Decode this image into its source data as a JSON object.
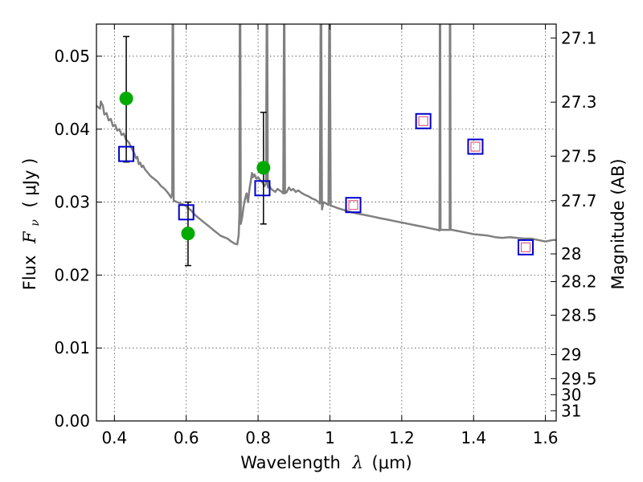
{
  "chart_data": {
    "type": "scatter",
    "xlabel_text": "Wavelength",
    "xlabel_symbol": "λ",
    "xlabel_unit": "(μm)",
    "ylabel_text": "Flux",
    "ylabel_symbol": "F",
    "ylabel_sub": "ν",
    "ylabel_unit": "( μJy )",
    "y2label": "Magnitude (AB)",
    "xlim": [
      0.35,
      1.63
    ],
    "ylim": [
      0.0,
      0.0544
    ],
    "x_ticks": [
      0.4,
      0.6,
      0.8,
      1.0,
      1.2,
      1.4,
      1.6
    ],
    "x_tick_labels": [
      "0.4",
      "0.6",
      "0.8",
      "1",
      "1.2",
      "1.4",
      "1.6"
    ],
    "y_ticks": [
      0.0,
      0.01,
      0.02,
      0.03,
      0.04,
      0.05
    ],
    "y_tick_labels": [
      "0.00",
      "0.01",
      "0.02",
      "0.03",
      "0.04",
      "0.05"
    ],
    "y2_ticks": [
      {
        "label": "27.1",
        "flux": 0.0525
      },
      {
        "label": "27.3",
        "flux": 0.0437
      },
      {
        "label": "27.5",
        "flux": 0.0363
      },
      {
        "label": "27.7",
        "flux": 0.0302
      },
      {
        "label": "28",
        "flux": 0.0229
      },
      {
        "label": "28.2",
        "flux": 0.0191
      },
      {
        "label": "28.5",
        "flux": 0.0145
      },
      {
        "label": "29",
        "flux": 0.0091
      },
      {
        "label": "29.5",
        "flux": 0.0058
      },
      {
        "label": "30",
        "flux": 0.0036
      },
      {
        "label": "31",
        "flux": 0.0014
      }
    ],
    "grid": true,
    "series": [
      {
        "kind": "line",
        "color": "#808080",
        "points": [
          [
            0.35,
            0.0432
          ],
          [
            0.36,
            0.0428
          ],
          [
            0.362,
            0.0438
          ],
          [
            0.368,
            0.0432
          ],
          [
            0.372,
            0.042
          ],
          [
            0.378,
            0.0422
          ],
          [
            0.384,
            0.0412
          ],
          [
            0.39,
            0.0414
          ],
          [
            0.396,
            0.0404
          ],
          [
            0.402,
            0.0406
          ],
          [
            0.408,
            0.0398
          ],
          [
            0.414,
            0.04
          ],
          [
            0.42,
            0.0392
          ],
          [
            0.426,
            0.0394
          ],
          [
            0.432,
            0.0386
          ],
          [
            0.44,
            0.0382
          ],
          [
            0.448,
            0.0374
          ],
          [
            0.456,
            0.0366
          ],
          [
            0.46,
            0.036
          ],
          [
            0.464,
            0.0362
          ],
          [
            0.468,
            0.0352
          ],
          [
            0.472,
            0.0354
          ],
          [
            0.476,
            0.0348
          ],
          [
            0.48,
            0.035
          ],
          [
            0.485,
            0.0345
          ],
          [
            0.49,
            0.0342
          ],
          [
            0.5,
            0.0336
          ],
          [
            0.51,
            0.0332
          ],
          [
            0.52,
            0.0328
          ],
          [
            0.53,
            0.0322
          ],
          [
            0.54,
            0.0318
          ],
          [
            0.55,
            0.0312
          ],
          [
            0.558,
            0.0306
          ],
          [
            0.561,
            0.0313
          ],
          [
            0.562,
            0.0544
          ],
          [
            0.5635,
            0.0544
          ],
          [
            0.565,
            0.0302
          ],
          [
            0.575,
            0.03
          ],
          [
            0.585,
            0.0298
          ],
          [
            0.595,
            0.0296
          ],
          [
            0.605,
            0.0292
          ],
          [
            0.615,
            0.0288
          ],
          [
            0.625,
            0.0282
          ],
          [
            0.635,
            0.0278
          ],
          [
            0.645,
            0.0274
          ],
          [
            0.655,
            0.027
          ],
          [
            0.665,
            0.0266
          ],
          [
            0.675,
            0.0262
          ],
          [
            0.685,
            0.0258
          ],
          [
            0.695,
            0.0254
          ],
          [
            0.705,
            0.0252
          ],
          [
            0.715,
            0.025
          ],
          [
            0.725,
            0.0246
          ],
          [
            0.735,
            0.0243
          ],
          [
            0.742,
            0.0242
          ],
          [
            0.746,
            0.0255
          ],
          [
            0.748,
            0.0285
          ],
          [
            0.749,
            0.0544
          ],
          [
            0.7505,
            0.0544
          ],
          [
            0.752,
            0.027
          ],
          [
            0.756,
            0.028
          ],
          [
            0.76,
            0.0295
          ],
          [
            0.764,
            0.0305
          ],
          [
            0.768,
            0.0312
          ],
          [
            0.772,
            0.03
          ],
          [
            0.776,
            0.0318
          ],
          [
            0.78,
            0.033
          ],
          [
            0.783,
            0.034
          ],
          [
            0.786,
            0.0334
          ],
          [
            0.79,
            0.0338
          ],
          [
            0.795,
            0.0332
          ],
          [
            0.8,
            0.0334
          ],
          [
            0.806,
            0.033
          ],
          [
            0.812,
            0.0327
          ],
          [
            0.818,
            0.0322
          ],
          [
            0.822,
            0.0325
          ],
          [
            0.824,
            0.0544
          ],
          [
            0.8255,
            0.0544
          ],
          [
            0.827,
            0.032
          ],
          [
            0.83,
            0.0324
          ],
          [
            0.836,
            0.0318
          ],
          [
            0.842,
            0.0316
          ],
          [
            0.848,
            0.0314
          ],
          [
            0.854,
            0.0318
          ],
          [
            0.86,
            0.0316
          ],
          [
            0.866,
            0.0314
          ],
          [
            0.87,
            0.0312
          ],
          [
            0.872,
            0.0544
          ],
          [
            0.8735,
            0.0544
          ],
          [
            0.875,
            0.0312
          ],
          [
            0.88,
            0.0314
          ],
          [
            0.886,
            0.032
          ],
          [
            0.892,
            0.0316
          ],
          [
            0.898,
            0.0318
          ],
          [
            0.905,
            0.0314
          ],
          [
            0.912,
            0.0316
          ],
          [
            0.92,
            0.0313
          ],
          [
            0.93,
            0.031
          ],
          [
            0.94,
            0.0308
          ],
          [
            0.95,
            0.0305
          ],
          [
            0.96,
            0.0303
          ],
          [
            0.968,
            0.03
          ],
          [
            0.972,
            0.0298
          ],
          [
            0.974,
            0.0544
          ],
          [
            0.976,
            0.0544
          ],
          [
            0.978,
            0.029
          ],
          [
            0.982,
            0.03
          ],
          [
            0.99,
            0.0298
          ],
          [
            0.996,
            0.0296
          ],
          [
            0.998,
            0.0544
          ],
          [
            1.0,
            0.0544
          ],
          [
            1.002,
            0.0295
          ],
          [
            1.01,
            0.0294
          ],
          [
            1.02,
            0.0292
          ],
          [
            1.04,
            0.0289
          ],
          [
            1.06,
            0.0286
          ],
          [
            1.08,
            0.0284
          ],
          [
            1.1,
            0.0282
          ],
          [
            1.12,
            0.028
          ],
          [
            1.14,
            0.0278
          ],
          [
            1.16,
            0.0276
          ],
          [
            1.18,
            0.0274
          ],
          [
            1.2,
            0.0272
          ],
          [
            1.22,
            0.027
          ],
          [
            1.24,
            0.0268
          ],
          [
            1.26,
            0.0266
          ],
          [
            1.28,
            0.0264
          ],
          [
            1.3,
            0.0262
          ],
          [
            1.305,
            0.0261
          ],
          [
            1.306,
            0.0544
          ],
          [
            1.307,
            0.0544
          ],
          [
            1.308,
            0.0262
          ],
          [
            1.315,
            0.0262
          ],
          [
            1.328,
            0.0262
          ],
          [
            1.3335,
            0.0262
          ],
          [
            1.334,
            0.0544
          ],
          [
            1.335,
            0.0544
          ],
          [
            1.336,
            0.0262
          ],
          [
            1.34,
            0.0262
          ],
          [
            1.36,
            0.026
          ],
          [
            1.38,
            0.0258
          ],
          [
            1.4,
            0.0256
          ],
          [
            1.42,
            0.0255
          ],
          [
            1.44,
            0.0254
          ],
          [
            1.46,
            0.0252
          ],
          [
            1.48,
            0.0251
          ],
          [
            1.5,
            0.0252
          ],
          [
            1.52,
            0.0251
          ],
          [
            1.54,
            0.025
          ],
          [
            1.56,
            0.025
          ],
          [
            1.58,
            0.0248
          ],
          [
            1.6,
            0.0246
          ],
          [
            1.62,
            0.0248
          ],
          [
            1.63,
            0.0248
          ]
        ]
      },
      {
        "kind": "errorbar",
        "marker": "circle",
        "color": "#00aa00",
        "points": [
          {
            "x": 0.433,
            "y": 0.0442,
            "lo": 0.0355,
            "hi": 0.0527
          },
          {
            "x": 0.605,
            "y": 0.0257,
            "lo": 0.0213,
            "hi": 0.03
          },
          {
            "x": 0.815,
            "y": 0.0347,
            "lo": 0.027,
            "hi": 0.0423
          }
        ]
      },
      {
        "kind": "scatter",
        "marker": "square",
        "color": "#0000cc",
        "points": [
          [
            0.433,
            0.0366
          ],
          [
            0.6,
            0.0286
          ],
          [
            0.812,
            0.0319
          ],
          [
            1.065,
            0.0296
          ],
          [
            1.26,
            0.0411
          ],
          [
            1.405,
            0.0376
          ],
          [
            1.545,
            0.0238
          ]
        ]
      },
      {
        "kind": "scatter",
        "marker": "small-square",
        "color": "#e06080",
        "points": [
          [
            1.065,
            0.0296
          ],
          [
            1.26,
            0.0411
          ],
          [
            1.405,
            0.0376
          ],
          [
            1.545,
            0.0238
          ]
        ]
      }
    ]
  }
}
